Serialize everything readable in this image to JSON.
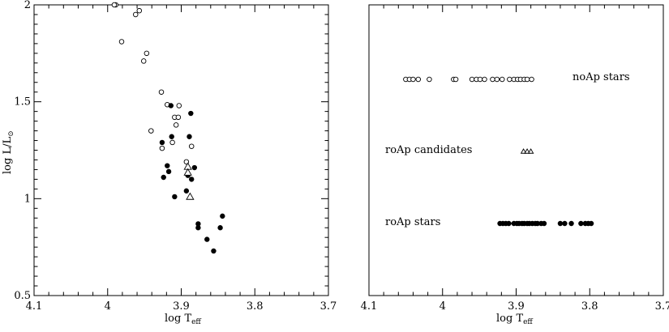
{
  "chart_data": [
    {
      "type": "scatter",
      "xlabel_main": "log T",
      "xlabel_sub": "eff",
      "ylabel": "log L/L",
      "ylabel_symbol": "⊙",
      "xlim": [
        4.1,
        3.7
      ],
      "ylim": [
        0.5,
        2.0
      ],
      "x_ticks": [
        4.1,
        4.0,
        3.9,
        3.8,
        3.7
      ],
      "x_tick_labels": [
        "4.1",
        "4",
        "3.9",
        "3.8",
        "3.7"
      ],
      "y_ticks": [
        0.5,
        1.0,
        1.5,
        2.0
      ],
      "y_tick_labels": [
        "0.5",
        "1",
        "1.5",
        "2"
      ],
      "series": [
        {
          "marker": "open-circle",
          "points": [
            [
              3.981,
              1.81
            ],
            [
              3.989,
              2.0
            ],
            [
              3.991,
              2.0
            ],
            [
              3.962,
              1.95
            ],
            [
              3.957,
              1.97
            ],
            [
              3.947,
              1.75
            ],
            [
              3.951,
              1.71
            ],
            [
              3.927,
              1.55
            ],
            [
              3.919,
              1.485
            ],
            [
              3.941,
              1.35
            ],
            [
              3.926,
              1.26
            ],
            [
              3.909,
              1.42
            ],
            [
              3.904,
              1.42
            ],
            [
              3.907,
              1.38
            ],
            [
              3.912,
              1.29
            ],
            [
              3.903,
              1.48
            ],
            [
              3.886,
              1.27
            ],
            [
              3.893,
              1.19
            ]
          ]
        },
        {
          "marker": "filled-circle",
          "points": [
            [
              3.914,
              1.48
            ],
            [
              3.887,
              1.44
            ],
            [
              3.926,
              1.29
            ],
            [
              3.913,
              1.32
            ],
            [
              3.889,
              1.32
            ],
            [
              3.882,
              1.16
            ],
            [
              3.919,
              1.17
            ],
            [
              3.917,
              1.14
            ],
            [
              3.924,
              1.11
            ],
            [
              3.891,
              1.12
            ],
            [
              3.886,
              1.1
            ],
            [
              3.909,
              1.01
            ],
            [
              3.893,
              1.04
            ],
            [
              3.877,
              0.87
            ],
            [
              3.877,
              0.85
            ],
            [
              3.865,
              0.79
            ],
            [
              3.856,
              0.73
            ],
            [
              3.847,
              0.85
            ],
            [
              3.844,
              0.91
            ]
          ]
        },
        {
          "marker": "open-triangle",
          "points": [
            [
              3.891,
              1.165
            ],
            [
              3.891,
              1.135
            ],
            [
              3.888,
              1.01
            ]
          ]
        }
      ]
    },
    {
      "type": "scatter",
      "xlabel_main": "log T",
      "xlabel_sub": "eff",
      "xlim": [
        4.1,
        3.7
      ],
      "x_ticks": [
        4.1,
        4.0,
        3.9,
        3.8,
        3.7
      ],
      "x_tick_labels": [
        "4.1",
        "4",
        "3.9",
        "3.8",
        "3.7"
      ],
      "rows": [
        {
          "label": "noAp stars",
          "marker": "open-circle",
          "x": [
            4.05,
            4.045,
            4.04,
            4.033,
            4.018,
            3.985,
            3.982,
            3.96,
            3.954,
            3.949,
            3.943,
            3.932,
            3.926,
            3.919,
            3.909,
            3.903,
            3.898,
            3.894,
            3.889,
            3.885,
            3.879
          ]
        },
        {
          "label": "roAp candidates",
          "marker": "open-triangle",
          "x": [
            3.89,
            3.885,
            3.88
          ]
        },
        {
          "label": "roAp stars",
          "marker": "filled-circle",
          "x": [
            3.922,
            3.918,
            3.914,
            3.91,
            3.903,
            3.899,
            3.896,
            3.892,
            3.889,
            3.885,
            3.882,
            3.878,
            3.874,
            3.871,
            3.866,
            3.862,
            3.84,
            3.834,
            3.825,
            3.812,
            3.806,
            3.802,
            3.798
          ]
        }
      ]
    }
  ]
}
